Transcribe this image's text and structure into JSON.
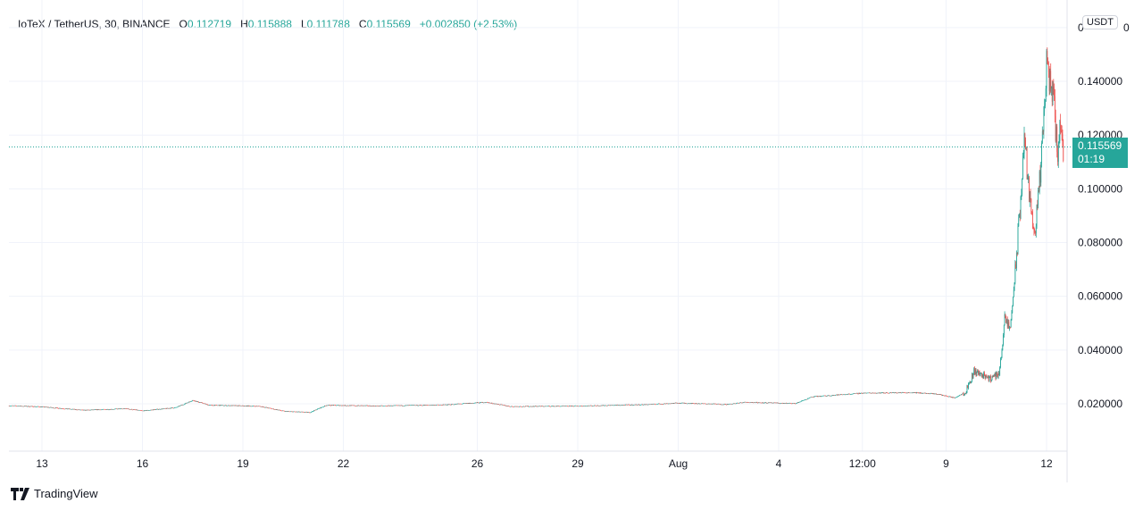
{
  "header": {
    "symbol": "IoTeX / TetherUS, 30, BINANCE",
    "o_label": "O",
    "open": "0.112719",
    "h_label": "H",
    "high": "0.115888",
    "l_label": "L",
    "low": "0.111788",
    "c_label": "C",
    "close": "0.115569",
    "change": "+0.002850 (+2.53%)"
  },
  "price_axis": {
    "currency": "USDT",
    "last_price": "0.115569",
    "countdown": "01:19"
  },
  "brand": {
    "name": "TradingView"
  },
  "colors": {
    "up": "#26a69a",
    "down": "#ef5350",
    "grid": "#f0f3fa",
    "last_price_line": "#26a69a"
  },
  "chart_data": {
    "type": "candlestick",
    "interval": "30",
    "ylim": [
      0.0,
      0.16
    ],
    "y_ticks": [
      "0.020000",
      "0.040000",
      "0.060000",
      "0.080000",
      "0.100000",
      "0.120000",
      "0.140000"
    ],
    "x_ticks": [
      "13",
      "16",
      "19",
      "22",
      "26",
      "29",
      "Aug",
      "4",
      "12:00",
      "9",
      "12"
    ],
    "grid": true,
    "approx_price_path": [
      [
        "Jul 12 00:00",
        0.0193
      ],
      [
        "Jul 13 00:00",
        0.0189
      ],
      [
        "Jul 14 06:00",
        0.0176
      ],
      [
        "Jul 15 12:00",
        0.0182
      ],
      [
        "Jul 16 00:00",
        0.0174
      ],
      [
        "Jul 17 00:00",
        0.0186
      ],
      [
        "Jul 17 12:00",
        0.0213
      ],
      [
        "Jul 18 00:00",
        0.0195
      ],
      [
        "Jul 19 12:00",
        0.0191
      ],
      [
        "Jul 20 06:00",
        0.0172
      ],
      [
        "Jul 21 00:00",
        0.0168
      ],
      [
        "Jul 21 12:00",
        0.0195
      ],
      [
        "Jul 23 00:00",
        0.0192
      ],
      [
        "Jul 25 00:00",
        0.0196
      ],
      [
        "Jul 26 06:00",
        0.0206
      ],
      [
        "Jul 27 00:00",
        0.019
      ],
      [
        "Jul 29 00:00",
        0.0192
      ],
      [
        "Jul 31 00:00",
        0.0197
      ],
      [
        "Aug 1 00:00",
        0.0203
      ],
      [
        "Aug 2 12:00",
        0.0198
      ],
      [
        "Aug 3 00:00",
        0.0206
      ],
      [
        "Aug 4 12:00",
        0.0201
      ],
      [
        "Aug 5 00:00",
        0.0226
      ],
      [
        "Aug 6 12:00",
        0.024
      ],
      [
        "Aug 8 00:00",
        0.0242
      ],
      [
        "Aug 8 18:00",
        0.0236
      ],
      [
        "Aug 9 06:00",
        0.0222
      ],
      [
        "Aug 9 14:00",
        0.0245
      ],
      [
        "Aug 9 20:00",
        0.032
      ],
      [
        "Aug 10 08:00",
        0.0295
      ],
      [
        "Aug 10 14:00",
        0.031
      ],
      [
        "Aug 10 18:00",
        0.051
      ],
      [
        "Aug 10 22:00",
        0.048
      ],
      [
        "Aug 11 02:00",
        0.072
      ],
      [
        "Aug 11 06:00",
        0.1
      ],
      [
        "Aug 11 08:00",
        0.12
      ],
      [
        "Aug 11 12:00",
        0.095
      ],
      [
        "Aug 11 16:00",
        0.084
      ],
      [
        "Aug 11 20:00",
        0.108
      ],
      [
        "Aug 12 00:00",
        0.145
      ],
      [
        "Aug 12 04:00",
        0.137
      ],
      [
        "Aug 12 08:00",
        0.115
      ],
      [
        "Aug 12 10:00",
        0.123
      ],
      [
        "Aug 12 12:00",
        0.1156
      ]
    ]
  }
}
